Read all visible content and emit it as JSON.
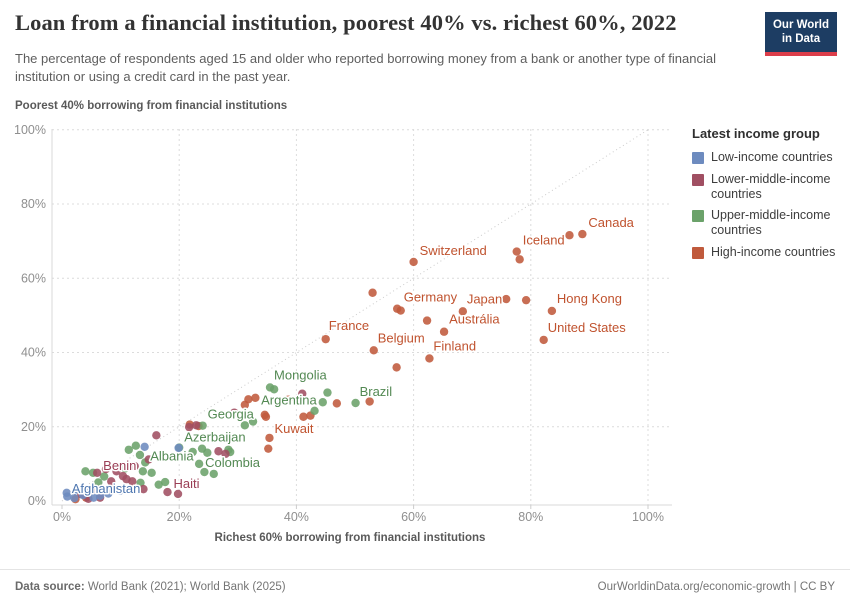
{
  "header": {
    "title": "Loan from a financial institution, poorest 40% vs. richest 60%, 2022",
    "subtitle": "The percentage of respondents aged 15 and older who reported borrowing money from a bank or another type of financial institution or using a credit card in the past year.",
    "logo": {
      "line1": "Our World",
      "line2": "in Data"
    }
  },
  "chart_data": {
    "type": "scatter",
    "y_axis_title": "Poorest 40% borrowing from financial institutions",
    "x_axis_title": "Richest 60% borrowing from financial institutions",
    "xlim": [
      0,
      100
    ],
    "ylim": [
      0,
      100
    ],
    "grid": "dashed",
    "diagonal_line": true,
    "x_ticks": [
      {
        "v": 0,
        "label": "0%"
      },
      {
        "v": 20,
        "label": "20%"
      },
      {
        "v": 40,
        "label": "40%"
      },
      {
        "v": 60,
        "label": "60%"
      },
      {
        "v": 80,
        "label": "80%"
      },
      {
        "v": 100,
        "label": "100%"
      }
    ],
    "y_ticks": [
      {
        "v": 0,
        "label": "0%"
      },
      {
        "v": 20,
        "label": "20%"
      },
      {
        "v": 40,
        "label": "40%"
      },
      {
        "v": 60,
        "label": "60%"
      },
      {
        "v": 80,
        "label": "80%"
      },
      {
        "v": 100,
        "label": "100%"
      }
    ],
    "legend": {
      "title": "Latest income group",
      "entries": [
        {
          "label": "Low-income countries",
          "color": "#6d8bbf"
        },
        {
          "label": "Lower-middle-income countries",
          "color": "#a04f62"
        },
        {
          "label": "Upper-middle-income countries",
          "color": "#6ba26a"
        },
        {
          "label": "High-income countries",
          "color": "#c05a3c"
        }
      ]
    },
    "groups": [
      {
        "name": "High-income countries",
        "color": "#c05a3c",
        "label_color": "#c0532f",
        "points": [
          [
            88.8,
            71.9,
            "Canada",
            6,
            -7
          ],
          [
            86.6,
            71.6
          ],
          [
            77.6,
            67.2,
            "Iceland",
            6,
            -7
          ],
          [
            78.1,
            65.1
          ],
          [
            60,
            64.4,
            "Switzerland",
            6,
            -7
          ],
          [
            53,
            56.1
          ],
          [
            75.8,
            54.4
          ],
          [
            79.2,
            54.1
          ],
          [
            57.2,
            51.8
          ],
          [
            57.8,
            51.3,
            "Germany",
            3,
            -9
          ],
          [
            68.4,
            51.1,
            "Japan",
            4,
            -8
          ],
          [
            83.6,
            51.2,
            "Hong Kong",
            5,
            -8
          ],
          [
            62.3,
            48.6
          ],
          [
            65.2,
            45.6,
            "Austrália",
            5,
            -8
          ],
          [
            45,
            43.6,
            "France",
            3,
            -9
          ],
          [
            82.2,
            43.4,
            "United States",
            4,
            -8
          ],
          [
            53.2,
            40.6,
            "Belgium",
            4,
            -8
          ],
          [
            62.7,
            38.4,
            "Finland",
            4,
            -8
          ],
          [
            57.1,
            36
          ],
          [
            52.5,
            26.8
          ],
          [
            46.9,
            26.3
          ],
          [
            42.4,
            23
          ],
          [
            41.2,
            22.7
          ],
          [
            34.6,
            23.2
          ],
          [
            38.6,
            27.3
          ],
          [
            33,
            27.8
          ],
          [
            31.8,
            27.4
          ],
          [
            31.2,
            25.9
          ],
          [
            35.4,
            17,
            "Kuwait",
            5,
            -5
          ],
          [
            34.8,
            22.7
          ],
          [
            23.3,
            20.2
          ],
          [
            21.8,
            20.6
          ],
          [
            35.2,
            14.1
          ],
          [
            2.3,
            0.5
          ],
          [
            4.1,
            0.9
          ]
        ]
      },
      {
        "name": "Upper-middle-income countries",
        "color": "#6ba26a",
        "label_color": "#538953",
        "points": [
          [
            35.5,
            30.6,
            "Mongolia",
            4,
            -8
          ],
          [
            36.2,
            30.1
          ],
          [
            45.3,
            29.2
          ],
          [
            50.1,
            26.4,
            "Brazil",
            4,
            -7
          ],
          [
            44.5,
            26.6,
            "Argentina",
            -6,
            2,
            "end"
          ],
          [
            43.1,
            24.3
          ],
          [
            32.6,
            21.4
          ],
          [
            31.2,
            20.4
          ],
          [
            24,
            20.3,
            "Georgia",
            5,
            -7
          ],
          [
            20,
            14.4,
            "Azerbaijan",
            5,
            -6
          ],
          [
            23.9,
            14.1
          ],
          [
            28.4,
            13.8
          ],
          [
            28.7,
            13.2
          ],
          [
            24.8,
            13
          ],
          [
            22.3,
            13.2
          ],
          [
            23.4,
            10,
            "Colombia",
            6,
            3
          ],
          [
            14.2,
            10.4,
            "Albania",
            5,
            -2
          ],
          [
            25.9,
            7.3
          ],
          [
            24.3,
            7.8
          ],
          [
            16.5,
            4.4
          ],
          [
            17.6,
            5.1
          ],
          [
            13.4,
            4.9
          ],
          [
            15.3,
            7.6
          ],
          [
            13.8,
            8
          ],
          [
            12.6,
            14.9
          ],
          [
            11.4,
            13.8
          ],
          [
            13.3,
            12.4
          ],
          [
            4,
            8
          ],
          [
            5.3,
            7.6
          ],
          [
            7.2,
            6.6
          ],
          [
            9.1,
            9.3
          ],
          [
            6.2,
            5
          ],
          [
            10.8,
            8.8
          ]
        ]
      },
      {
        "name": "Lower-middle-income countries",
        "color": "#a04f62",
        "label_color": "#9a3e55",
        "points": [
          [
            41,
            28.9
          ],
          [
            29.4,
            23.8
          ],
          [
            27.9,
            12.7
          ],
          [
            26.7,
            13.4
          ],
          [
            21.7,
            19.9
          ],
          [
            22.9,
            20.4
          ],
          [
            16.1,
            17.7
          ],
          [
            6,
            7.6,
            "Benin",
            6,
            -3
          ],
          [
            7.5,
            8.6
          ],
          [
            9.3,
            8
          ],
          [
            10.4,
            6.7
          ],
          [
            11,
            5.9
          ],
          [
            8.4,
            5.3
          ],
          [
            12,
            5.3
          ],
          [
            5.9,
            3.1
          ],
          [
            4.5,
            0.6
          ],
          [
            6.5,
            0.9
          ],
          [
            18,
            2.4,
            "Haiti",
            6,
            -4
          ],
          [
            19.8,
            1.9
          ],
          [
            13.9,
            3.2
          ],
          [
            3.3,
            1.8
          ],
          [
            12.4,
            9.4
          ],
          [
            14.8,
            11.2
          ]
        ]
      },
      {
        "name": "Low-income countries",
        "color": "#6d8bbf",
        "label_color": "#4f77b0",
        "points": [
          [
            0.8,
            2.2,
            "Afghanistan",
            5,
            0
          ],
          [
            14.1,
            14.6
          ],
          [
            19.9,
            14.3
          ],
          [
            0.9,
            1.2
          ],
          [
            2.1,
            0.8
          ],
          [
            4.5,
            2.2
          ],
          [
            6.5,
            1.4
          ],
          [
            7.9,
            2
          ],
          [
            2.6,
            3.1
          ],
          [
            5.4,
            0.9
          ],
          [
            3.6,
            1.6
          ],
          [
            9.9,
            2.8
          ]
        ]
      }
    ]
  },
  "footer": {
    "source_label": "Data source:",
    "source_text": "World Bank (2021); World Bank (2025)",
    "right_text": "OurWorldinData.org/economic-growth | CC BY"
  }
}
